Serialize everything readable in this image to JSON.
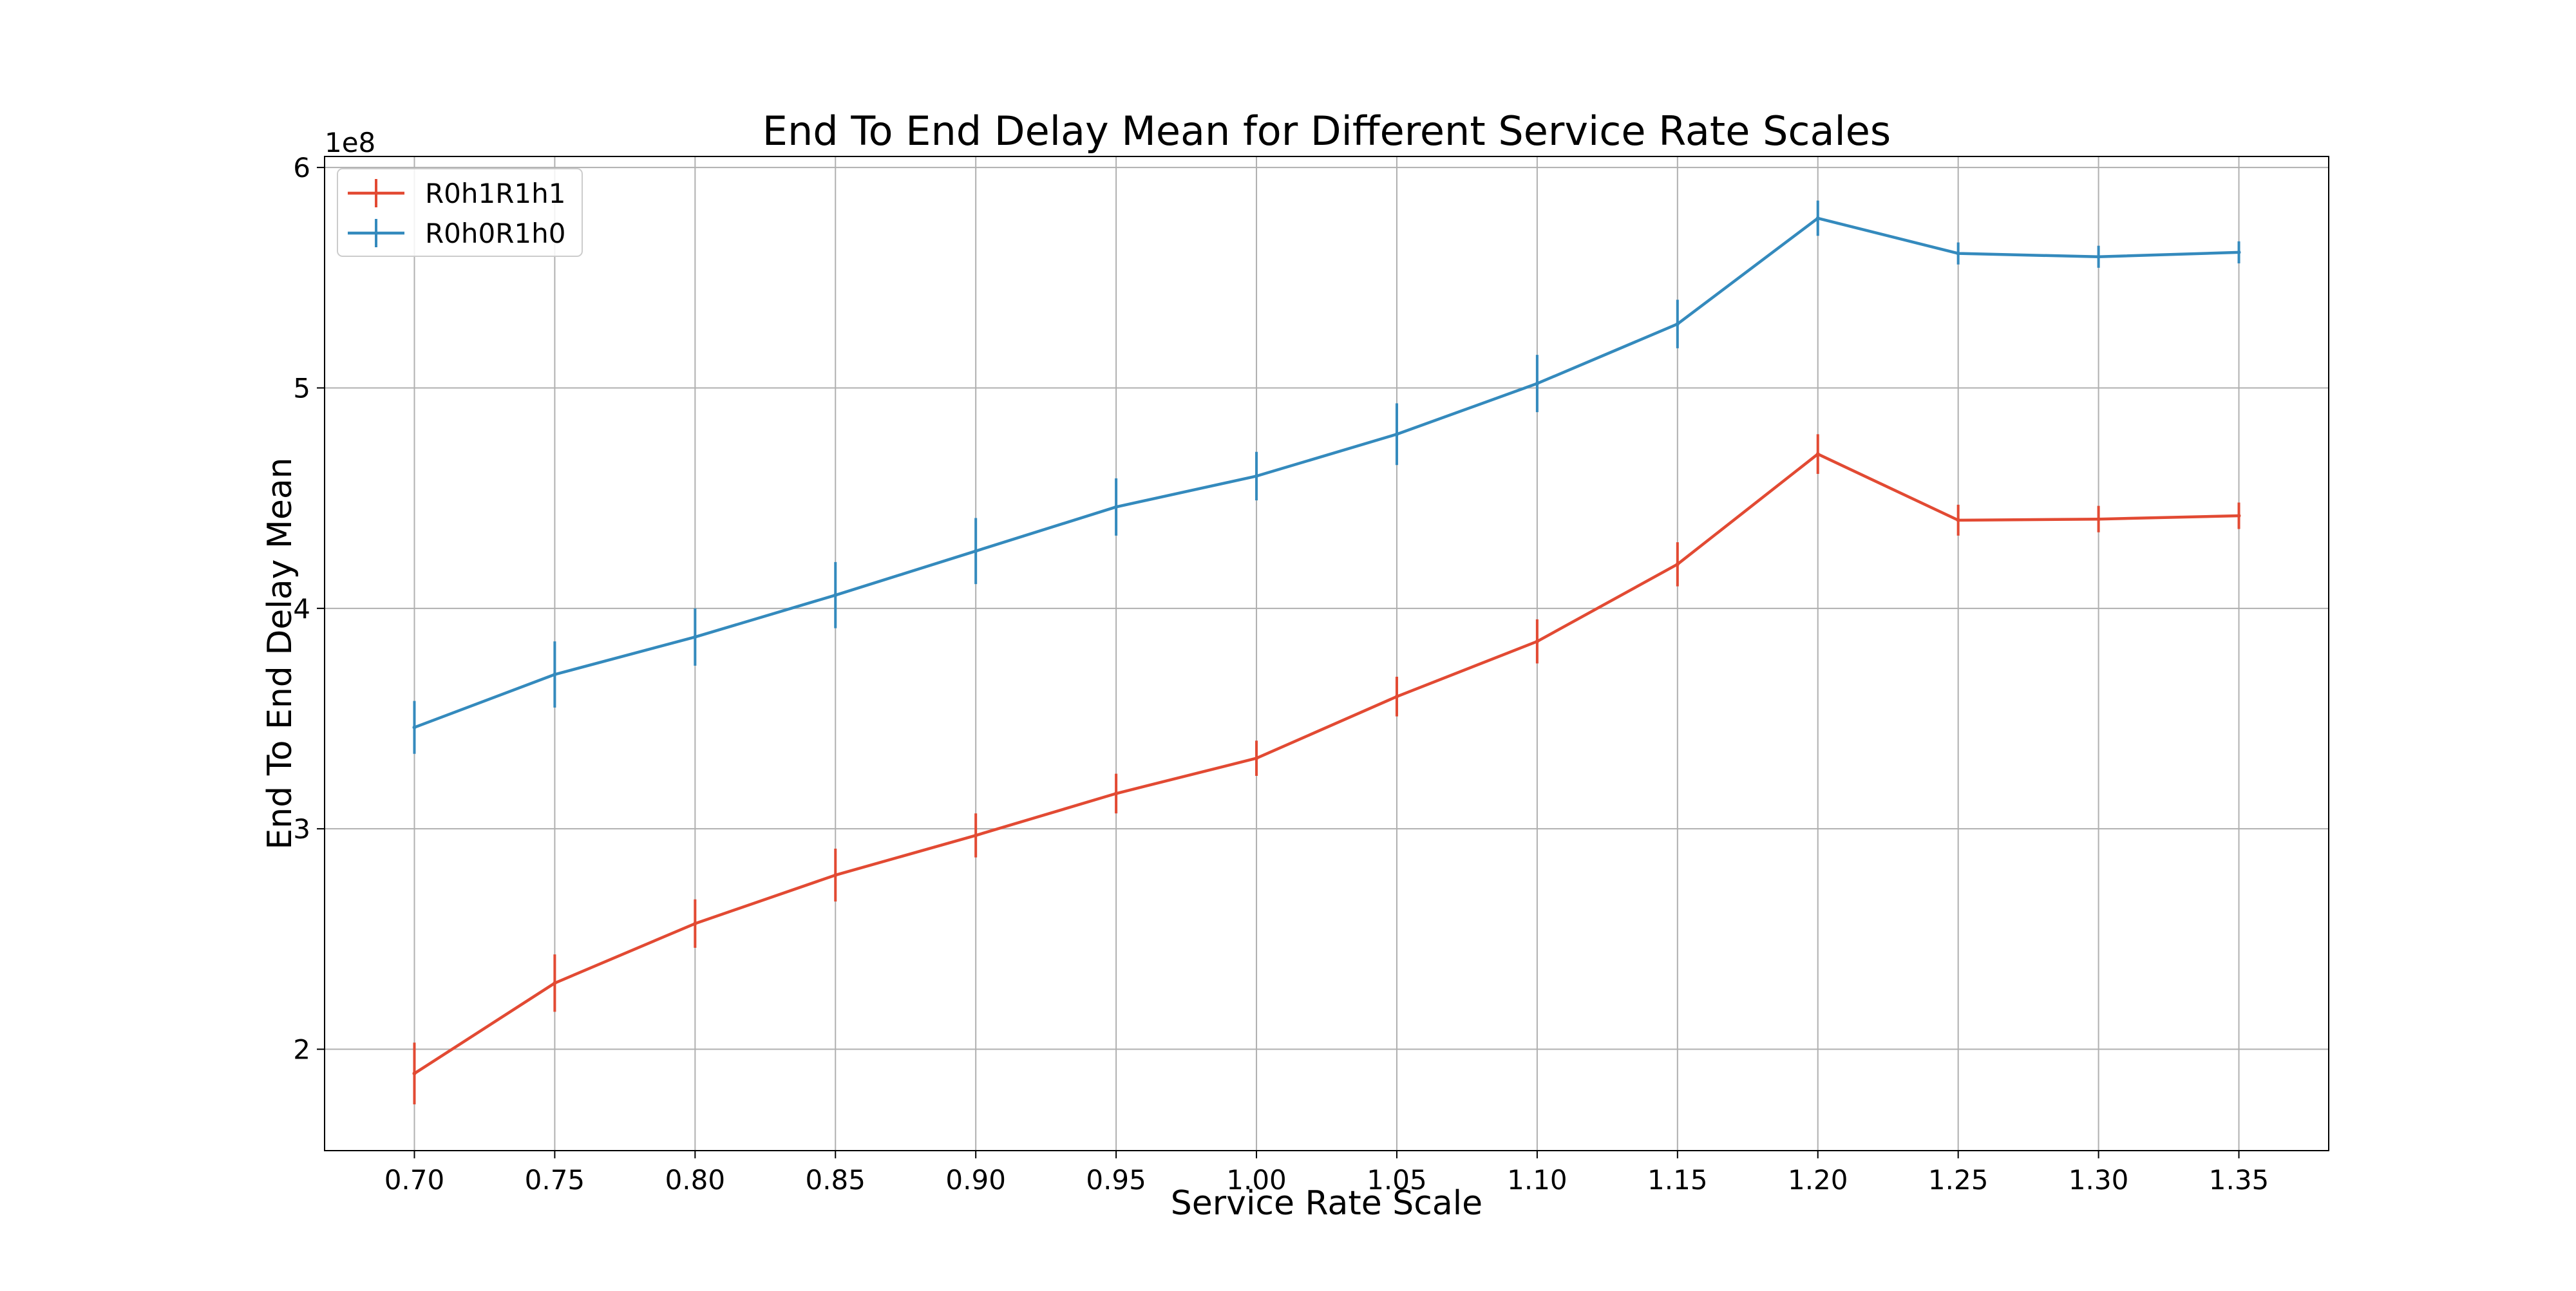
{
  "chart_data": {
    "type": "line",
    "title": "End To End Delay Mean for Different Service Rate Scales",
    "xlabel": "Service Rate Scale",
    "ylabel": "End To End Delay Mean",
    "y_offset_text": "1e8",
    "y_scale_factor": 100000000,
    "grid": true,
    "legend_position": "top-left",
    "xlim": [
      0.668,
      1.382
    ],
    "ylim": [
      154000000,
      605000000
    ],
    "x_ticks": [
      0.7,
      0.75,
      0.8,
      0.85,
      0.9,
      0.95,
      1.0,
      1.05,
      1.1,
      1.15,
      1.2,
      1.25,
      1.3,
      1.35
    ],
    "x_tick_labels": [
      "0.70",
      "0.75",
      "0.80",
      "0.85",
      "0.90",
      "0.95",
      "1.00",
      "1.05",
      "1.10",
      "1.15",
      "1.20",
      "1.25",
      "1.30",
      "1.35"
    ],
    "y_ticks": [
      200000000,
      300000000,
      400000000,
      500000000,
      600000000
    ],
    "y_tick_labels": [
      "2",
      "3",
      "4",
      "5",
      "6"
    ],
    "x": [
      0.7,
      0.75,
      0.8,
      0.85,
      0.9,
      0.95,
      1.0,
      1.05,
      1.1,
      1.15,
      1.2,
      1.25,
      1.3,
      1.35
    ],
    "series": [
      {
        "name": "R0h1R1h1",
        "color": "#e24a33",
        "values": [
          189000000,
          230000000,
          257000000,
          279000000,
          297000000,
          316000000,
          332000000,
          360000000,
          385000000,
          420000000,
          470000000,
          440000000,
          440500000,
          442000000
        ],
        "errors": [
          14000000,
          13000000,
          11000000,
          12000000,
          10000000,
          9000000,
          8000000,
          9000000,
          10000000,
          10000000,
          9000000,
          7000000,
          6000000,
          6000000
        ]
      },
      {
        "name": "R0h0R1h0",
        "color": "#348abd",
        "values": [
          346000000,
          370000000,
          387000000,
          406000000,
          426000000,
          446000000,
          460000000,
          479000000,
          502000000,
          529000000,
          577000000,
          561000000,
          559500000,
          561500000
        ],
        "errors": [
          12000000,
          15000000,
          13000000,
          15000000,
          15000000,
          13000000,
          11000000,
          14000000,
          13000000,
          11000000,
          8000000,
          5000000,
          5000000,
          5000000
        ]
      }
    ]
  }
}
